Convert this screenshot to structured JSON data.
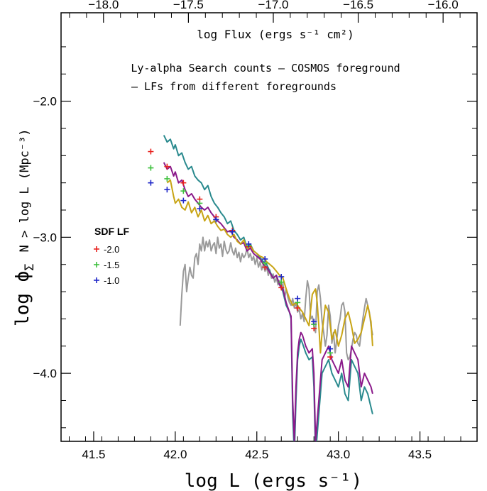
{
  "chart_data": {
    "type": "line",
    "xlabel": "log L (ergs s⁻¹)",
    "ylabel_main": "log ϕ",
    "ylabel_sub": "Σ",
    "ylabel_rest": "N > log L (Mpc⁻³)",
    "top_xlabel": "log Flux (ergs s⁻¹ cm²)",
    "xlim": [
      41.3,
      43.85
    ],
    "ylim": [
      -4.5,
      -1.35
    ],
    "top_xlim": [
      -18.25,
      -15.8
    ],
    "x_ticks": [
      41.5,
      42.0,
      42.5,
      43.0,
      43.5
    ],
    "x_tick_labels": [
      "41.5",
      "42.0",
      "42.5",
      "43.0",
      "43.5"
    ],
    "y_ticks": [
      -2.0,
      -3.0,
      -4.0
    ],
    "y_tick_labels": [
      "−2.0",
      "−3.0",
      "−4.0"
    ],
    "top_ticks": [
      -18.0,
      -17.5,
      -17.0,
      -16.5,
      -16.0
    ],
    "top_tick_labels": [
      "−18.0",
      "−17.5",
      "−17.0",
      "−16.5",
      "−16.0"
    ],
    "annotations": {
      "line1": "Ly-alpha Search counts  – COSMOS foreground",
      "line2": "– LFs from different foregrounds"
    },
    "legend": {
      "title": "SDF LF",
      "entries": [
        {
          "label": "-2.0",
          "color": "#e8231f"
        },
        {
          "label": "-1.5",
          "color": "#3cc03c"
        },
        {
          "label": "-1.0",
          "color": "#1f27c8"
        }
      ]
    },
    "series": [
      {
        "name": "COSMOS foreground",
        "color": "#9a9a9a",
        "x": [
          42.03,
          42.04,
          42.05,
          42.06,
          42.07,
          42.08,
          42.09,
          42.1,
          42.11,
          42.12,
          42.13,
          42.14,
          42.15,
          42.16,
          42.17,
          42.18,
          42.19,
          42.2,
          42.21,
          42.22,
          42.23,
          42.24,
          42.25,
          42.26,
          42.27,
          42.28,
          42.29,
          42.3,
          42.31,
          42.32,
          42.33,
          42.34,
          42.35,
          42.36,
          42.37,
          42.38,
          42.39,
          42.4,
          42.41,
          42.42,
          42.43,
          42.44,
          42.45,
          42.46,
          42.47,
          42.48,
          42.49,
          42.5,
          42.51,
          42.52,
          42.53,
          42.54,
          42.55,
          42.56,
          42.57,
          42.58,
          42.59,
          42.6,
          42.61,
          42.62,
          42.63,
          42.64,
          42.65,
          42.66,
          42.67,
          42.68,
          42.69,
          42.7,
          42.71,
          42.72,
          42.73,
          42.74,
          42.75,
          42.76,
          42.77,
          42.78,
          42.79,
          42.8,
          42.81,
          42.82,
          42.83,
          42.84,
          42.85,
          42.86,
          42.87,
          42.88,
          42.89,
          42.9,
          42.91,
          42.92,
          42.93,
          42.94,
          42.95,
          42.96,
          42.97,
          42.98,
          42.99,
          43.0,
          43.01,
          43.02,
          43.03,
          43.04,
          43.05,
          43.06,
          43.07,
          43.08,
          43.09,
          43.1,
          43.11,
          43.12,
          43.13,
          43.14,
          43.15,
          43.16,
          43.17,
          43.18,
          43.19,
          43.2,
          43.21
        ],
        "y": [
          -3.65,
          -3.42,
          -3.25,
          -3.2,
          -3.4,
          -3.3,
          -3.22,
          -3.28,
          -3.3,
          -3.15,
          -3.12,
          -3.2,
          -3.05,
          -3.1,
          -3.0,
          -3.1,
          -3.03,
          -3.07,
          -3.02,
          -3.1,
          -3.06,
          -3.04,
          -3.12,
          -3.0,
          -3.08,
          -3.05,
          -3.14,
          -3.03,
          -3.09,
          -3.12,
          -3.1,
          -3.04,
          -3.1,
          -3.13,
          -3.08,
          -3.15,
          -3.11,
          -3.18,
          -3.12,
          -3.15,
          -3.13,
          -3.08,
          -3.15,
          -3.12,
          -3.17,
          -3.14,
          -3.2,
          -3.15,
          -3.22,
          -3.18,
          -3.24,
          -3.2,
          -3.25,
          -3.22,
          -3.28,
          -3.24,
          -3.3,
          -3.27,
          -3.33,
          -3.3,
          -3.35,
          -3.32,
          -3.38,
          -3.34,
          -3.45,
          -3.38,
          -3.44,
          -3.48,
          -3.5,
          -3.45,
          -3.52,
          -3.48,
          -3.55,
          -3.53,
          -3.6,
          -3.56,
          -3.62,
          -3.45,
          -3.32,
          -3.38,
          -3.6,
          -3.58,
          -3.65,
          -3.7,
          -3.4,
          -3.35,
          -3.45,
          -3.62,
          -3.7,
          -3.8,
          -3.72,
          -3.5,
          -3.58,
          -3.78,
          -3.7,
          -3.85,
          -3.75,
          -3.65,
          -3.6,
          -3.5,
          -3.48,
          -3.55,
          -3.85,
          -3.9,
          -3.88,
          -3.82,
          -3.75,
          -3.7,
          -3.72,
          -3.78,
          -3.8,
          -3.7,
          -3.6,
          -3.52,
          -3.45,
          -3.5,
          -3.55,
          -3.65,
          -3.72
        ]
      },
      {
        "name": "foreground teal",
        "color": "#2a8a8e",
        "x": [
          41.93,
          41.95,
          41.97,
          41.99,
          42.0,
          42.02,
          42.04,
          42.06,
          42.08,
          42.1,
          42.12,
          42.14,
          42.16,
          42.18,
          42.2,
          42.22,
          42.24,
          42.26,
          42.28,
          42.3,
          42.32,
          42.34,
          42.36,
          42.38,
          42.4,
          42.42,
          42.44,
          42.46,
          42.48,
          42.5,
          42.52,
          42.54,
          42.56,
          42.58,
          42.6,
          42.62,
          42.64,
          42.66,
          42.68,
          42.7,
          42.71,
          42.72,
          42.73,
          42.74,
          42.75,
          42.76,
          42.77,
          42.78,
          42.8,
          42.82,
          42.84,
          42.85,
          42.86,
          42.88,
          42.9,
          42.92,
          42.94,
          42.96,
          42.98,
          43.0,
          43.02,
          43.04,
          43.06,
          43.08,
          43.1,
          43.12,
          43.14,
          43.16,
          43.18,
          43.2,
          43.21
        ],
        "y": [
          -2.25,
          -2.3,
          -2.28,
          -2.35,
          -2.32,
          -2.4,
          -2.38,
          -2.45,
          -2.5,
          -2.48,
          -2.55,
          -2.58,
          -2.6,
          -2.65,
          -2.62,
          -2.7,
          -2.75,
          -2.78,
          -2.82,
          -2.85,
          -2.9,
          -2.88,
          -2.95,
          -2.98,
          -3.02,
          -3.0,
          -3.08,
          -3.05,
          -3.1,
          -3.12,
          -3.15,
          -3.18,
          -3.2,
          -3.25,
          -3.3,
          -3.28,
          -3.35,
          -3.4,
          -3.5,
          -3.55,
          -3.6,
          -4.3,
          -4.6,
          -4.2,
          -3.9,
          -3.8,
          -3.75,
          -3.78,
          -3.85,
          -3.9,
          -3.88,
          -4.1,
          -4.6,
          -4.3,
          -4.0,
          -3.95,
          -3.9,
          -4.0,
          -4.05,
          -4.1,
          -4.0,
          -4.15,
          -4.2,
          -3.9,
          -3.95,
          -4.0,
          -4.2,
          -4.1,
          -4.15,
          -4.25,
          -4.3
        ]
      },
      {
        "name": "foreground purple",
        "color": "#8b1a8b",
        "x": [
          41.93,
          41.95,
          41.97,
          41.99,
          42.0,
          42.02,
          42.04,
          42.06,
          42.08,
          42.1,
          42.12,
          42.14,
          42.16,
          42.18,
          42.2,
          42.22,
          42.24,
          42.26,
          42.28,
          42.3,
          42.32,
          42.34,
          42.36,
          42.38,
          42.4,
          42.42,
          42.44,
          42.46,
          42.48,
          42.5,
          42.52,
          42.54,
          42.56,
          42.58,
          42.6,
          42.62,
          42.64,
          42.66,
          42.68,
          42.7,
          42.71,
          42.72,
          42.73,
          42.74,
          42.75,
          42.76,
          42.77,
          42.78,
          42.8,
          42.82,
          42.84,
          42.85,
          42.86,
          42.88,
          42.9,
          42.92,
          42.94,
          42.96,
          42.98,
          43.0,
          43.02,
          43.04,
          43.06,
          43.08,
          43.1,
          43.12,
          43.14,
          43.16,
          43.18,
          43.2,
          43.21
        ],
        "y": [
          -2.45,
          -2.5,
          -2.48,
          -2.55,
          -2.52,
          -2.6,
          -2.58,
          -2.65,
          -2.7,
          -2.68,
          -2.72,
          -2.75,
          -2.78,
          -2.8,
          -2.78,
          -2.82,
          -2.85,
          -2.88,
          -2.9,
          -2.93,
          -2.96,
          -2.95,
          -3.0,
          -3.02,
          -3.05,
          -3.04,
          -3.1,
          -3.08,
          -3.12,
          -3.14,
          -3.16,
          -3.2,
          -3.22,
          -3.26,
          -3.3,
          -3.28,
          -3.35,
          -3.38,
          -3.48,
          -3.55,
          -3.58,
          -4.2,
          -4.5,
          -4.1,
          -3.85,
          -3.75,
          -3.7,
          -3.72,
          -3.8,
          -3.85,
          -3.82,
          -4.0,
          -4.5,
          -4.2,
          -3.9,
          -3.85,
          -3.8,
          -3.9,
          -3.95,
          -4.0,
          -3.9,
          -4.05,
          -4.1,
          -3.8,
          -3.85,
          -3.9,
          -4.1,
          -4.0,
          -4.05,
          -4.1,
          -4.15
        ]
      },
      {
        "name": "foreground gold",
        "color": "#c8a414",
        "x": [
          41.95,
          41.97,
          41.99,
          42.0,
          42.02,
          42.04,
          42.06,
          42.08,
          42.1,
          42.12,
          42.14,
          42.16,
          42.18,
          42.2,
          42.22,
          42.24,
          42.26,
          42.28,
          42.3,
          42.32,
          42.34,
          42.36,
          42.38,
          42.4,
          42.42,
          42.44,
          42.46,
          42.48,
          42.5,
          42.52,
          42.54,
          42.56,
          42.58,
          42.6,
          42.62,
          42.64,
          42.66,
          42.68,
          42.7,
          42.72,
          42.74,
          42.76,
          42.78,
          42.8,
          42.82,
          42.84,
          42.86,
          42.87,
          42.88,
          42.89,
          42.9,
          42.92,
          42.94,
          42.96,
          42.98,
          43.0,
          43.02,
          43.04,
          43.06,
          43.08,
          43.1,
          43.12,
          43.14,
          43.16,
          43.18,
          43.2,
          43.21
        ],
        "y": [
          -2.6,
          -2.58,
          -2.7,
          -2.75,
          -2.72,
          -2.78,
          -2.8,
          -2.74,
          -2.82,
          -2.78,
          -2.85,
          -2.8,
          -2.88,
          -2.84,
          -2.9,
          -2.88,
          -2.92,
          -2.95,
          -2.94,
          -2.98,
          -3.0,
          -2.98,
          -3.03,
          -3.05,
          -3.02,
          -3.08,
          -3.06,
          -3.1,
          -3.12,
          -3.14,
          -3.15,
          -3.18,
          -3.2,
          -3.22,
          -3.25,
          -3.28,
          -3.3,
          -3.38,
          -3.45,
          -3.5,
          -3.48,
          -3.52,
          -3.55,
          -3.6,
          -3.65,
          -3.42,
          -3.38,
          -3.48,
          -3.65,
          -3.85,
          -3.7,
          -3.5,
          -3.55,
          -3.75,
          -3.68,
          -3.8,
          -3.72,
          -3.6,
          -3.55,
          -3.65,
          -3.78,
          -3.75,
          -3.7,
          -3.6,
          -3.5,
          -3.62,
          -3.8
        ]
      }
    ],
    "sdf_points": [
      {
        "name": "-2.0",
        "color": "#e8231f",
        "x": [
          41.85,
          41.95,
          42.05,
          42.15,
          42.25,
          42.35,
          42.45,
          42.55,
          42.65,
          42.75,
          42.85,
          42.95
        ],
        "y": [
          -2.37,
          -2.48,
          -2.6,
          -2.72,
          -2.85,
          -2.95,
          -3.07,
          -3.22,
          -3.37,
          -3.52,
          -3.67,
          -3.88
        ]
      },
      {
        "name": "-1.5",
        "color": "#3cc03c",
        "x": [
          41.85,
          41.95,
          42.05,
          42.15,
          42.25,
          42.35,
          42.45,
          42.55,
          42.65,
          42.75,
          42.85,
          42.95
        ],
        "y": [
          -2.49,
          -2.57,
          -2.66,
          -2.75,
          -2.87,
          -2.96,
          -3.06,
          -3.19,
          -3.33,
          -3.48,
          -3.64,
          -3.85
        ]
      },
      {
        "name": "-1.0",
        "color": "#1f27c8",
        "x": [
          41.85,
          41.95,
          42.05,
          42.15,
          42.25,
          42.35,
          42.45,
          42.55,
          42.65,
          42.75,
          42.85,
          42.95
        ],
        "y": [
          -2.6,
          -2.65,
          -2.73,
          -2.79,
          -2.87,
          -2.96,
          -3.05,
          -3.16,
          -3.29,
          -3.45,
          -3.62,
          -3.82
        ]
      }
    ]
  }
}
